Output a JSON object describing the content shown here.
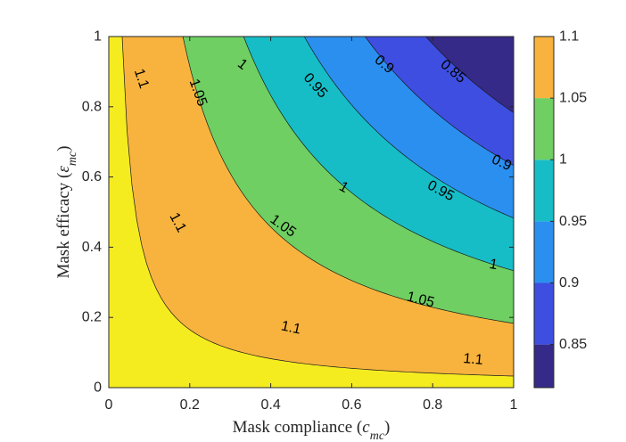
{
  "chart_data": {
    "type": "contour",
    "xlabel": {
      "main": "Mask compliance (",
      "sym": "c",
      "sub": "mc",
      "close": ")"
    },
    "ylabel": {
      "main": "Mask efficacy (",
      "sym": "ε",
      "sub": "mc",
      "close": ")"
    },
    "xlim": [
      0,
      1
    ],
    "ylim": [
      0,
      1
    ],
    "xticks": [
      "0",
      "0.2",
      "0.4",
      "0.6",
      "0.8",
      "1"
    ],
    "yticks": [
      "0",
      "0.2",
      "0.4",
      "0.6",
      "0.8",
      "1"
    ],
    "function": "z = 1.111 * (1 - 0.3 * x * y)",
    "levels": [
      0.85,
      0.9,
      0.95,
      1.0,
      1.05,
      1.1
    ],
    "band_colors": [
      "#352a87",
      "#3d4ee0",
      "#2b8ff0",
      "#16bdc6",
      "#6fcf62",
      "#f8b33e",
      "#f5ec20"
    ],
    "colorbar": {
      "min": 0.815,
      "max": 1.1,
      "ticks": [
        "0.85",
        "0.9",
        "0.95",
        "1",
        "1.05",
        "1.1"
      ],
      "tick_values": [
        0.85,
        0.9,
        0.95,
        1.0,
        1.05,
        1.1
      ]
    },
    "contour_labels": [
      {
        "text": "1.1",
        "x": 0.08,
        "y": 0.88,
        "angle": 72
      },
      {
        "text": "1.05",
        "x": 0.22,
        "y": 0.84,
        "angle": 70
      },
      {
        "text": "1",
        "x": 0.33,
        "y": 0.92,
        "angle": 38
      },
      {
        "text": "0.95",
        "x": 0.51,
        "y": 0.86,
        "angle": 48
      },
      {
        "text": "0.9",
        "x": 0.68,
        "y": 0.92,
        "angle": 40
      },
      {
        "text": "0.85",
        "x": 0.85,
        "y": 0.9,
        "angle": 40
      },
      {
        "text": "1.1",
        "x": 0.17,
        "y": 0.47,
        "angle": 62
      },
      {
        "text": "1.05",
        "x": 0.43,
        "y": 0.46,
        "angle": 36
      },
      {
        "text": "1",
        "x": 0.58,
        "y": 0.57,
        "angle": 30
      },
      {
        "text": "0.95",
        "x": 0.82,
        "y": 0.56,
        "angle": 28
      },
      {
        "text": "0.9",
        "x": 0.97,
        "y": 0.64,
        "angle": 25
      },
      {
        "text": "1.1",
        "x": 0.45,
        "y": 0.17,
        "angle": 12
      },
      {
        "text": "1.05",
        "x": 0.77,
        "y": 0.25,
        "angle": 14
      },
      {
        "text": "1",
        "x": 0.95,
        "y": 0.35,
        "angle": 10
      },
      {
        "text": "1.1",
        "x": 0.9,
        "y": 0.08,
        "angle": 5
      }
    ]
  }
}
